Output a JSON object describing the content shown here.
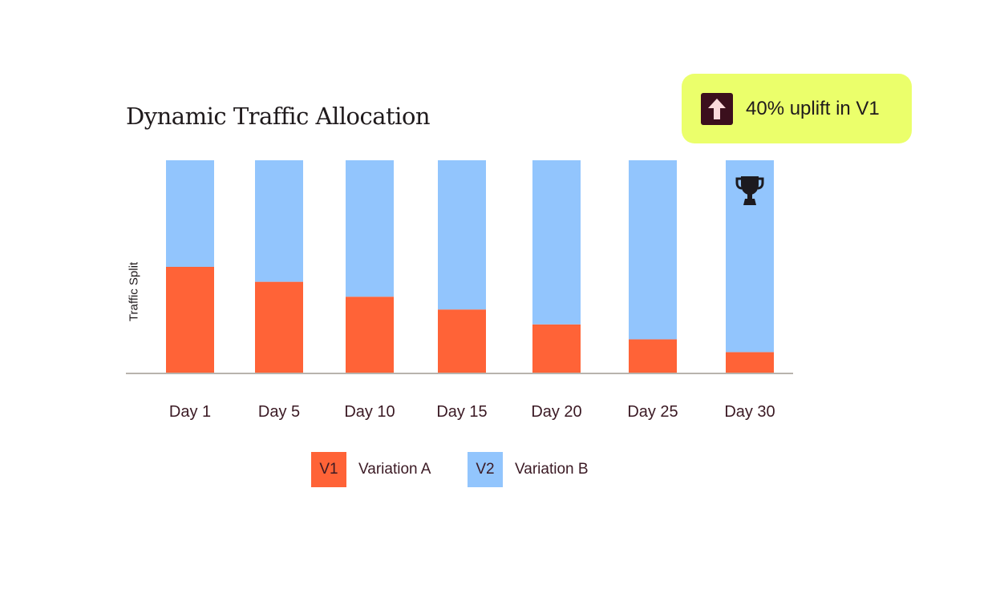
{
  "chart_data": {
    "type": "bar",
    "stacked": true,
    "title": "Dynamic Traffic Allocation",
    "ylabel": "Traffic Split",
    "xlabel": "",
    "categories": [
      "Day 1",
      "Day 5",
      "Day 10",
      "Day 15",
      "Day 20",
      "Day 25",
      "Day 30"
    ],
    "series": [
      {
        "key": "V1",
        "name": "Variation A",
        "color": "#ff6337",
        "values": [
          50,
          43,
          36,
          30,
          23,
          16,
          10
        ]
      },
      {
        "key": "V2",
        "name": "Variation B",
        "color": "#92c5fd",
        "values": [
          50,
          57,
          64,
          70,
          77,
          84,
          90
        ]
      }
    ],
    "ylim": [
      0,
      100
    ],
    "grid": false,
    "legend_position": "bottom",
    "winner_marker": {
      "category": "Day 30",
      "series": "V2",
      "icon": "trophy-icon"
    }
  },
  "callout": {
    "text": "40% uplift in V1",
    "icon": "arrow-up-icon",
    "background": "#ebff6b",
    "icon_background": "#3b0f1d"
  },
  "legend": [
    {
      "key": "V1",
      "label": "Variation A",
      "color": "#ff6337"
    },
    {
      "key": "V2",
      "label": "Variation B",
      "color": "#92c5fd"
    }
  ]
}
